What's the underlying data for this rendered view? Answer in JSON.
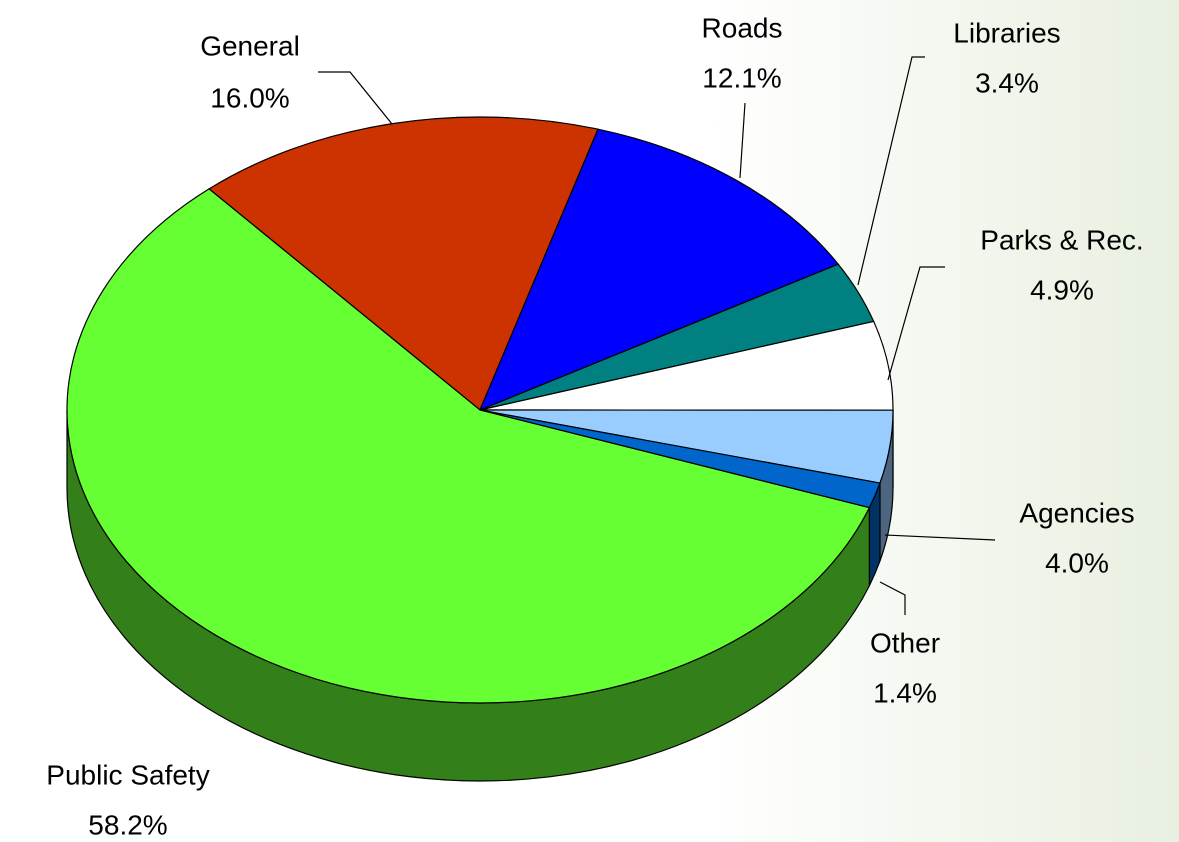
{
  "chart_data": {
    "type": "pie",
    "categories": [
      "General",
      "Roads",
      "Libraries",
      "Parks & Rec.",
      "Agencies",
      "Other",
      "Public Safety"
    ],
    "values": [
      16.0,
      12.1,
      3.4,
      4.9,
      4.0,
      1.4,
      58.2
    ],
    "value_labels": [
      "16.0%",
      "12.1%",
      "3.4%",
      "4.9%",
      "4.0%",
      "1.4%",
      "58.2%"
    ],
    "colors": [
      "#cc3300",
      "#0000ff",
      "#008080",
      "#ffffff",
      "#99ccff",
      "#0066cc",
      "#66ff33"
    ]
  }
}
